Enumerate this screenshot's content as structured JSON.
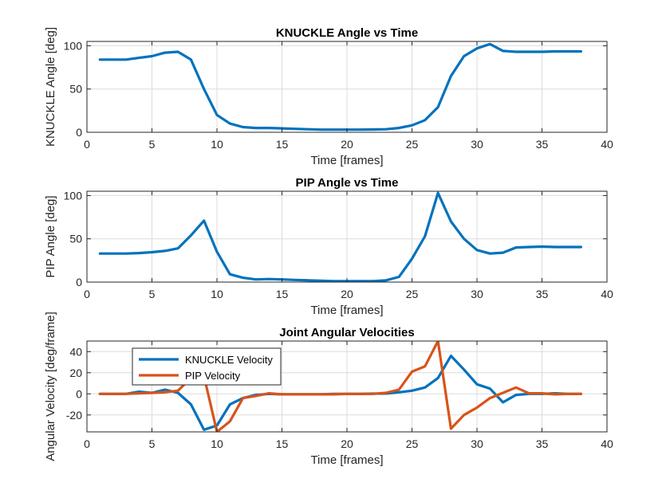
{
  "chart_data": [
    {
      "type": "line",
      "title": "KNUCKLE Angle vs Time",
      "xlabel": "Time [frames]",
      "ylabel": "KNUCKLE Angle [deg]",
      "xlim": [
        0,
        40
      ],
      "ylim": [
        0,
        105
      ],
      "xticks": [
        0,
        5,
        10,
        15,
        20,
        25,
        30,
        35,
        40
      ],
      "yticks": [
        0,
        50,
        100
      ],
      "grid": true,
      "x": [
        1,
        2,
        3,
        4,
        5,
        6,
        7,
        8,
        9,
        10,
        11,
        12,
        13,
        14,
        15,
        16,
        17,
        18,
        19,
        20,
        21,
        22,
        23,
        24,
        25,
        26,
        27,
        28,
        29,
        30,
        31,
        32,
        33,
        34,
        35,
        36,
        37,
        38
      ],
      "series": [
        {
          "color": "#0072BD",
          "values": [
            84,
            84,
            84,
            86,
            88,
            92,
            93,
            84,
            50,
            20,
            10,
            6,
            5,
            5,
            4.5,
            4,
            3.5,
            3,
            3,
            3,
            3,
            3.2,
            3.5,
            5,
            8,
            14,
            29,
            65,
            88,
            97,
            102,
            94,
            93,
            93,
            93,
            93.5,
            93.5,
            93.5
          ]
        }
      ]
    },
    {
      "type": "line",
      "title": "PIP Angle vs Time",
      "xlabel": "Time [frames]",
      "ylabel": "PIP Angle [deg]",
      "xlim": [
        0,
        40
      ],
      "ylim": [
        0,
        105
      ],
      "xticks": [
        0,
        5,
        10,
        15,
        20,
        25,
        30,
        35,
        40
      ],
      "yticks": [
        0,
        50,
        100
      ],
      "grid": true,
      "x": [
        1,
        2,
        3,
        4,
        5,
        6,
        7,
        8,
        9,
        10,
        11,
        12,
        13,
        14,
        15,
        16,
        17,
        18,
        19,
        20,
        21,
        22,
        23,
        24,
        25,
        26,
        27,
        28,
        29,
        30,
        31,
        32,
        33,
        34,
        35,
        36,
        37,
        38
      ],
      "series": [
        {
          "color": "#0072BD",
          "values": [
            33,
            33,
            33,
            33.5,
            34.5,
            36,
            39,
            54,
            71,
            35,
            9,
            5,
            3,
            3.5,
            3,
            2.5,
            2,
            1.5,
            1,
            1,
            1,
            1,
            2,
            6,
            27,
            53,
            103,
            70,
            50,
            37,
            33,
            34,
            40,
            40.5,
            41,
            40.5,
            40.5,
            40.5
          ]
        }
      ]
    },
    {
      "type": "line",
      "title": "Joint Angular Velocities",
      "xlabel": "Time [frames]",
      "ylabel": "Angular Velocity [deg/frame]",
      "xlim": [
        0,
        40
      ],
      "ylim": [
        -36,
        50
      ],
      "xticks": [
        0,
        5,
        10,
        15,
        20,
        25,
        30,
        35,
        40
      ],
      "yticks": [
        -20,
        0,
        20,
        40
      ],
      "grid": true,
      "legend": "upper-left",
      "x": [
        1,
        2,
        3,
        4,
        5,
        6,
        7,
        8,
        9,
        10,
        11,
        12,
        13,
        14,
        15,
        16,
        17,
        18,
        19,
        20,
        21,
        22,
        23,
        24,
        25,
        26,
        27,
        28,
        29,
        30,
        31,
        32,
        33,
        34,
        35,
        36,
        37,
        38
      ],
      "series": [
        {
          "name": "KNUCKLE Velocity",
          "color": "#0072BD",
          "values": [
            0,
            0,
            0,
            2,
            1,
            4,
            1,
            -10,
            -34,
            -30,
            -10,
            -4,
            -1,
            0,
            -0.5,
            -0.5,
            -0.5,
            -0.5,
            0,
            0,
            0,
            0.2,
            0.3,
            1.5,
            3,
            6,
            15,
            36,
            23,
            9,
            5,
            -8,
            -1,
            0,
            0,
            0.5,
            0,
            0
          ]
        },
        {
          "name": "PIP Velocity",
          "color": "#D95319",
          "values": [
            0,
            0,
            0,
            0.5,
            1,
            1.5,
            3,
            15,
            17,
            -36,
            -26,
            -4,
            -2,
            0.5,
            -0.5,
            -0.5,
            -0.5,
            -0.5,
            -0.5,
            0,
            0,
            0,
            1,
            4,
            21,
            26,
            50,
            -33,
            -20,
            -13,
            -4,
            1,
            6,
            0.5,
            0.5,
            -0.5,
            0,
            0
          ]
        }
      ]
    }
  ]
}
